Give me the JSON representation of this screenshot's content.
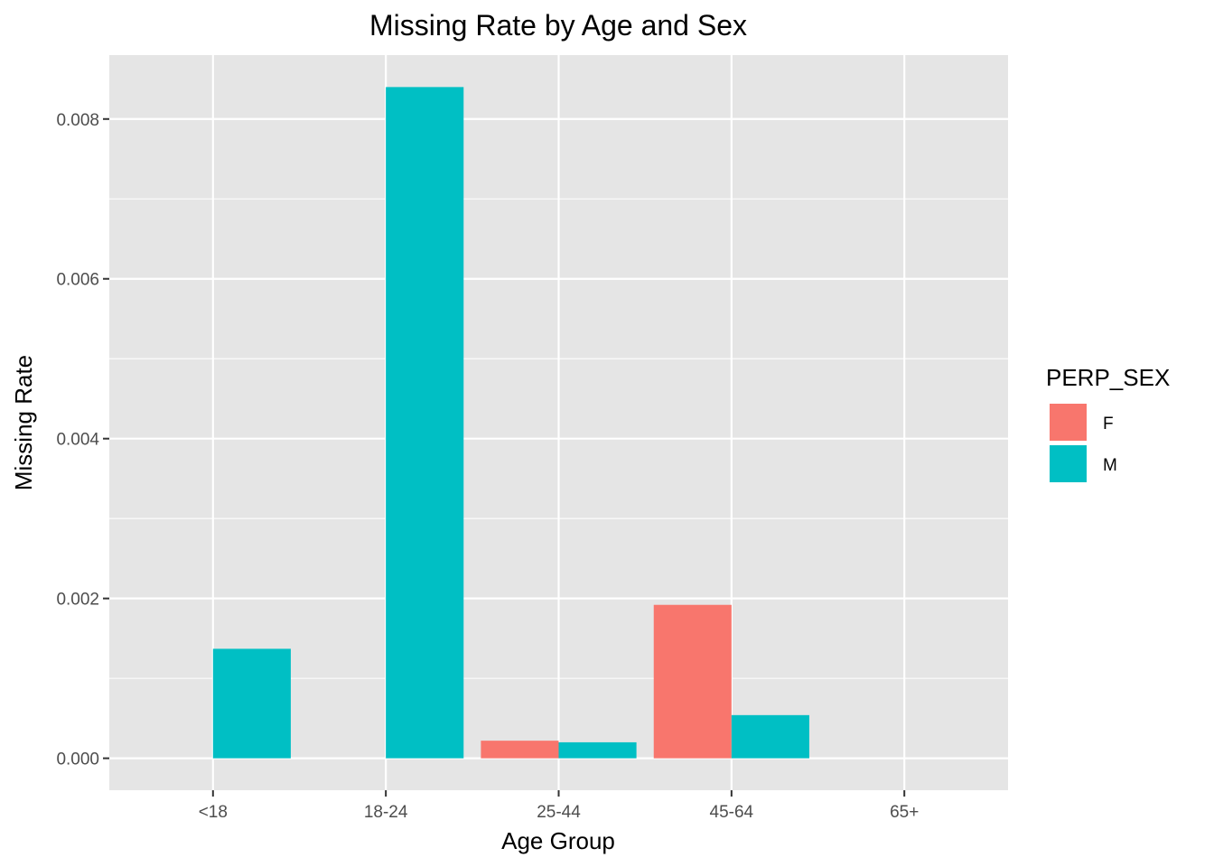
{
  "chart_data": {
    "type": "bar",
    "title": "Missing Rate by Age and Sex",
    "xlabel": "Age Group",
    "ylabel": "Missing Rate",
    "categories": [
      "<18",
      "18-24",
      "25-44",
      "45-64",
      "65+"
    ],
    "series": [
      {
        "name": "F",
        "color": "#F8766D",
        "values": [
          0,
          0,
          0.00022,
          0.00192,
          0
        ]
      },
      {
        "name": "M",
        "color": "#00BFC4",
        "values": [
          0.00137,
          0.0084,
          0.0002,
          0.00054,
          0
        ]
      }
    ],
    "ylim": [
      -0.0004,
      0.0088
    ],
    "y_ticks": [
      "0.000",
      "0.002",
      "0.004",
      "0.006",
      "0.008"
    ],
    "y_tick_values": [
      0,
      0.002,
      0.004,
      0.006,
      0.008
    ],
    "legend": {
      "title": "PERP_SEX",
      "placement": "right"
    },
    "grid": true,
    "panel_background": "#E5E5E5",
    "grid_color": "#FFFFFF"
  }
}
